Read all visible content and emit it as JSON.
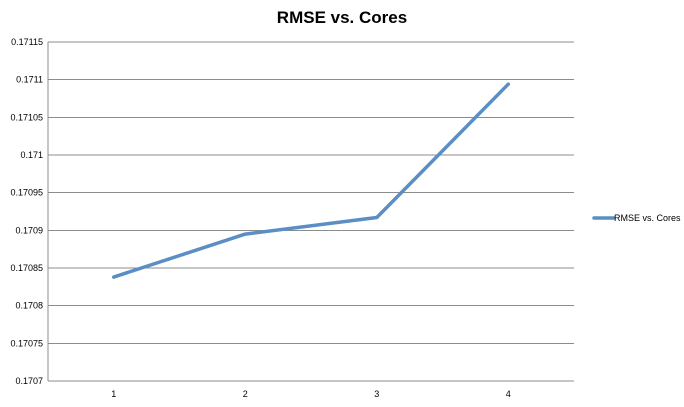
{
  "chart_data": {
    "type": "line",
    "title": "RMSE vs. Cores",
    "xlabel": "",
    "ylabel": "",
    "categories": [
      "1",
      "2",
      "3",
      "4"
    ],
    "series": [
      {
        "name": "RMSE vs. Cores",
        "values": [
          0.170838,
          0.170895,
          0.170917,
          0.171094
        ],
        "color": "#5b8ec4"
      }
    ],
    "ylim": [
      0.1707,
      0.17115
    ],
    "yticks": [
      "0.1707",
      "0.17075",
      "0.1708",
      "0.17085",
      "0.1709",
      "0.17095",
      "0.171",
      "0.17105",
      "0.1711",
      "0.17115"
    ],
    "grid": true,
    "legend": "right"
  }
}
